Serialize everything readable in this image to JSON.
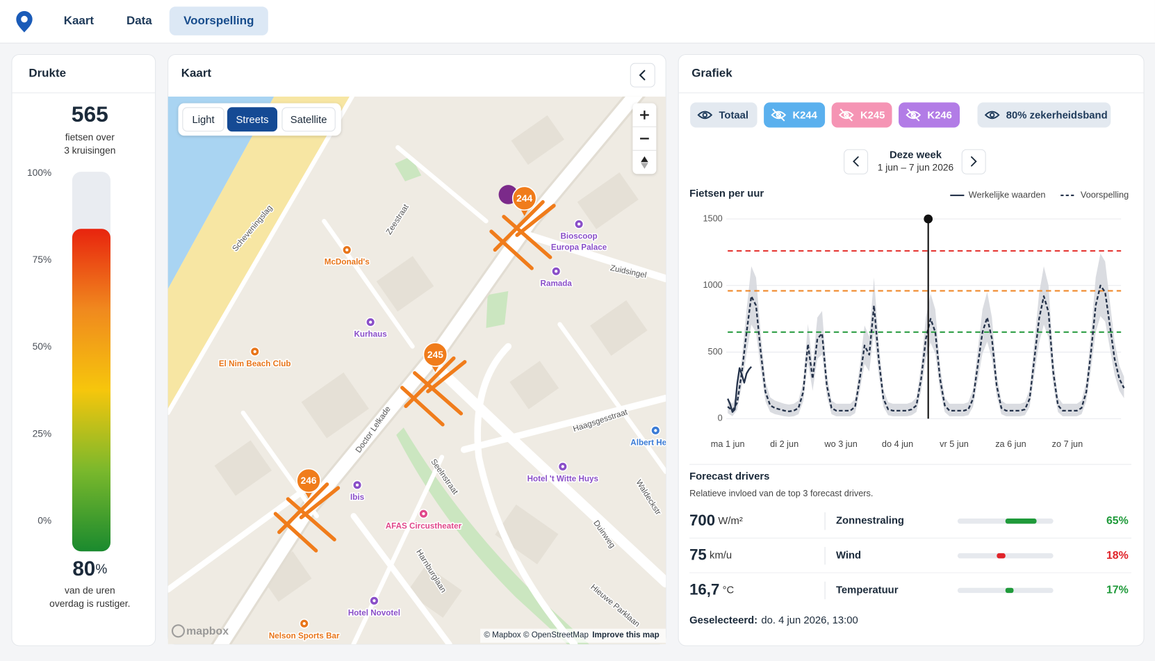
{
  "nav": {
    "items": [
      "Kaart",
      "Data",
      "Voorspelling"
    ],
    "active": 2
  },
  "drukte": {
    "title": "Drukte",
    "count": "565",
    "count_caption": [
      "fietsen over",
      "3 kruisingen"
    ],
    "share": "80",
    "share_unit": "%",
    "share_caption": [
      "van de uren",
      "overdag is rustiger."
    ]
  },
  "map": {
    "title": "Kaart",
    "styles": [
      "Light",
      "Streets",
      "Satellite"
    ],
    "active_style": 1,
    "markers": [
      "244",
      "245",
      "246"
    ],
    "marker_color": "#f07c1b",
    "pois": [
      {
        "lines": [
          "McDonald's"
        ],
        "color": "#e8751a"
      },
      {
        "lines": [
          "Bioscoop",
          "Europa Palace"
        ],
        "color": "#8a4fc8"
      },
      {
        "lines": [
          "Ramada"
        ],
        "color": "#8a4fc8"
      },
      {
        "lines": [
          "Kurhaus"
        ],
        "color": "#8a4fc8"
      },
      {
        "lines": [
          "El Nim Beach Club"
        ],
        "color": "#e8751a"
      },
      {
        "lines": [
          "Ibis"
        ],
        "color": "#8a4fc8"
      },
      {
        "lines": [
          "AFAS Circustheater"
        ],
        "color": "#e0478a"
      },
      {
        "lines": [
          "Hotel 't Witte Huys"
        ],
        "color": "#8a4fc8"
      },
      {
        "lines": [
          "Albert Hei"
        ],
        "color": "#3a7bd5"
      },
      {
        "lines": [
          "Hotel Novotel"
        ],
        "color": "#8a4fc8"
      },
      {
        "lines": [
          "Nelson Sports Bar"
        ],
        "color": "#e8751a"
      }
    ],
    "streets": [
      "Scheveningslag",
      "Zeestraat",
      "Zuidsingel",
      "Doctor Lelkade",
      "Haagsgesstraat",
      "Seelnstraat",
      "Duinweg",
      "Hieuwe Parklaan",
      "Harnburglaan",
      "Waldeckstr"
    ],
    "attribution": [
      "© Mapbox © OpenStreetMap",
      "Improve this map"
    ],
    "logo": "mapbox"
  },
  "grafiek": {
    "title": "Grafiek",
    "toggles": [
      {
        "label": "Totaal",
        "fill": "#e3e9f0",
        "text": "#1e3a5a",
        "visible": true
      },
      {
        "label": "K244",
        "fill": "#5ab0ee",
        "text": "#ffffff",
        "visible": false
      },
      {
        "label": "K245",
        "fill": "#f594b4",
        "text": "#ffffff",
        "visible": false
      },
      {
        "label": "K246",
        "fill": "#b27ce6",
        "text": "#ffffff",
        "visible": false
      },
      {
        "label": "80% zekerheidsband",
        "fill": "#e3e9f0",
        "text": "#1e3a5a",
        "visible": true
      }
    ],
    "week": {
      "title": "Deze week",
      "range": "1 jun – 7 jun 2026"
    },
    "drivers": {
      "title": "Forecast drivers",
      "subtitle": "Relatieve invloed van de top 3 forecast drivers.",
      "rows": [
        {
          "value": "700",
          "unit": "W/m²",
          "name": "Zonnestraling",
          "influence": 65,
          "influence_label": "65%",
          "color": "#1f9a3a",
          "side": "right"
        },
        {
          "value": "75",
          "unit": "km/u",
          "name": "Wind",
          "influence": 18,
          "influence_label": "18%",
          "color": "#e0242a",
          "side": "left"
        },
        {
          "value": "16,7",
          "unit": "°C",
          "name": "Temperatuur",
          "influence": 17,
          "influence_label": "17%",
          "color": "#1f9a3a",
          "side": "right"
        }
      ]
    },
    "selected": {
      "label": "Geselecteerd:",
      "value": "do. 4 jun 2026, 13:00"
    }
  },
  "chart_data": [
    {
      "type": "gauge",
      "ylim": [
        0,
        100
      ],
      "yticks": [
        {
          "value": 100,
          "label": "100%"
        },
        {
          "value": 75,
          "label": "75%"
        },
        {
          "value": 50,
          "label": "50%"
        },
        {
          "value": 25,
          "label": "25%"
        },
        {
          "value": 0,
          "label": "0%"
        }
      ],
      "values": [
        84
      ],
      "colors": [
        "#e8240e",
        "#f0891e",
        "#f6c60c",
        "#7ab82c",
        "#1a8a2e"
      ]
    },
    {
      "type": "line",
      "title": "Fietsen per uur",
      "xlim": [
        0,
        168
      ],
      "xticks": [
        {
          "value": 0,
          "label": "ma 1 jun"
        },
        {
          "value": 24,
          "label": "di 2 jun"
        },
        {
          "value": 48,
          "label": "wo 3 jun"
        },
        {
          "value": 72,
          "label": "do 4 jun"
        },
        {
          "value": 96,
          "label": "vr 5 jun"
        },
        {
          "value": 120,
          "label": "za 6 jun"
        },
        {
          "value": 144,
          "label": "zo 7 jun"
        }
      ],
      "ylim": [
        0,
        1500
      ],
      "yticks": [
        0,
        500,
        1000,
        1500
      ],
      "grid": true,
      "series": [
        {
          "name": "Werkelijke waarden",
          "color": "#24324a",
          "dash": false,
          "x": [
            0,
            1,
            2,
            3,
            4,
            5,
            6,
            7,
            8,
            9,
            10
          ],
          "values": [
            150,
            110,
            50,
            70,
            260,
            380,
            330,
            270,
            340,
            370,
            390
          ]
        },
        {
          "name": "Voorspelling",
          "color": "#24324a",
          "dash": true,
          "x": [
            0,
            2,
            4,
            6,
            8,
            10,
            12,
            14,
            16,
            18,
            20,
            22,
            24,
            26,
            28,
            30,
            32,
            34,
            36,
            38,
            40,
            42,
            44,
            46,
            48,
            50,
            52,
            54,
            56,
            58,
            60,
            62,
            64,
            66,
            68,
            70,
            72,
            74,
            76,
            78,
            80,
            82,
            84,
            86,
            88,
            90,
            92,
            94,
            96,
            98,
            100,
            102,
            104,
            106,
            108,
            110,
            112,
            114,
            116,
            118,
            120,
            122,
            124,
            126,
            128,
            130,
            132,
            134,
            136,
            138,
            140,
            142,
            144,
            146,
            148,
            150,
            152,
            154,
            156,
            158,
            160,
            162,
            164,
            166,
            168
          ],
          "values": [
            90,
            60,
            120,
            350,
            650,
            920,
            850,
            500,
            200,
            100,
            80,
            70,
            60,
            55,
            60,
            80,
            200,
            560,
            300,
            600,
            640,
            250,
            80,
            60,
            60,
            60,
            60,
            90,
            300,
            550,
            480,
            850,
            450,
            150,
            70,
            60,
            60,
            60,
            60,
            70,
            100,
            300,
            600,
            750,
            650,
            300,
            100,
            60,
            60,
            60,
            60,
            70,
            150,
            400,
            650,
            760,
            600,
            250,
            80,
            60,
            60,
            60,
            60,
            70,
            150,
            450,
            750,
            920,
            800,
            350,
            100,
            60,
            60,
            60,
            60,
            80,
            200,
            500,
            850,
            1000,
            950,
            700,
            450,
            300,
            230
          ]
        }
      ],
      "band": {
        "color": "#d3d6dc",
        "upper": [
          148,
          112,
          184,
          460,
          820,
          1144,
          1060,
          640,
          280,
          160,
          136,
          124,
          112,
          106,
          112,
          136,
          280,
          712,
          400,
          760,
          808,
          340,
          136,
          112,
          112,
          112,
          112,
          148,
          400,
          700,
          616,
          1060,
          580,
          220,
          124,
          112,
          112,
          112,
          112,
          124,
          160,
          400,
          760,
          940,
          820,
          400,
          160,
          112,
          112,
          112,
          112,
          124,
          220,
          520,
          820,
          952,
          760,
          340,
          136,
          112,
          112,
          112,
          112,
          124,
          220,
          580,
          940,
          1144,
          1000,
          460,
          160,
          112,
          112,
          112,
          112,
          136,
          280,
          640,
          1060,
          1240,
          1180,
          880,
          580,
          400,
          316
        ],
        "lower": [
          42,
          18,
          66,
          250,
          490,
          706,
          650,
          370,
          130,
          50,
          34,
          26,
          18,
          14,
          18,
          34,
          130,
          418,
          210,
          450,
          482,
          170,
          34,
          18,
          18,
          18,
          18,
          42,
          210,
          410,
          354,
          650,
          330,
          90,
          26,
          18,
          18,
          18,
          18,
          26,
          50,
          210,
          450,
          570,
          490,
          210,
          50,
          18,
          18,
          18,
          18,
          26,
          90,
          290,
          490,
          578,
          450,
          170,
          34,
          18,
          18,
          18,
          18,
          26,
          90,
          330,
          570,
          706,
          610,
          250,
          50,
          18,
          18,
          18,
          18,
          34,
          130,
          370,
          650,
          770,
          730,
          530,
          330,
          210,
          154
        ]
      },
      "thresholds": [
        {
          "value": 1260,
          "color": "#e53935"
        },
        {
          "value": 960,
          "color": "#f0892a"
        },
        {
          "value": 650,
          "color": "#2e9e45"
        }
      ],
      "selected": {
        "x": 85,
        "value": 1500
      }
    }
  ]
}
